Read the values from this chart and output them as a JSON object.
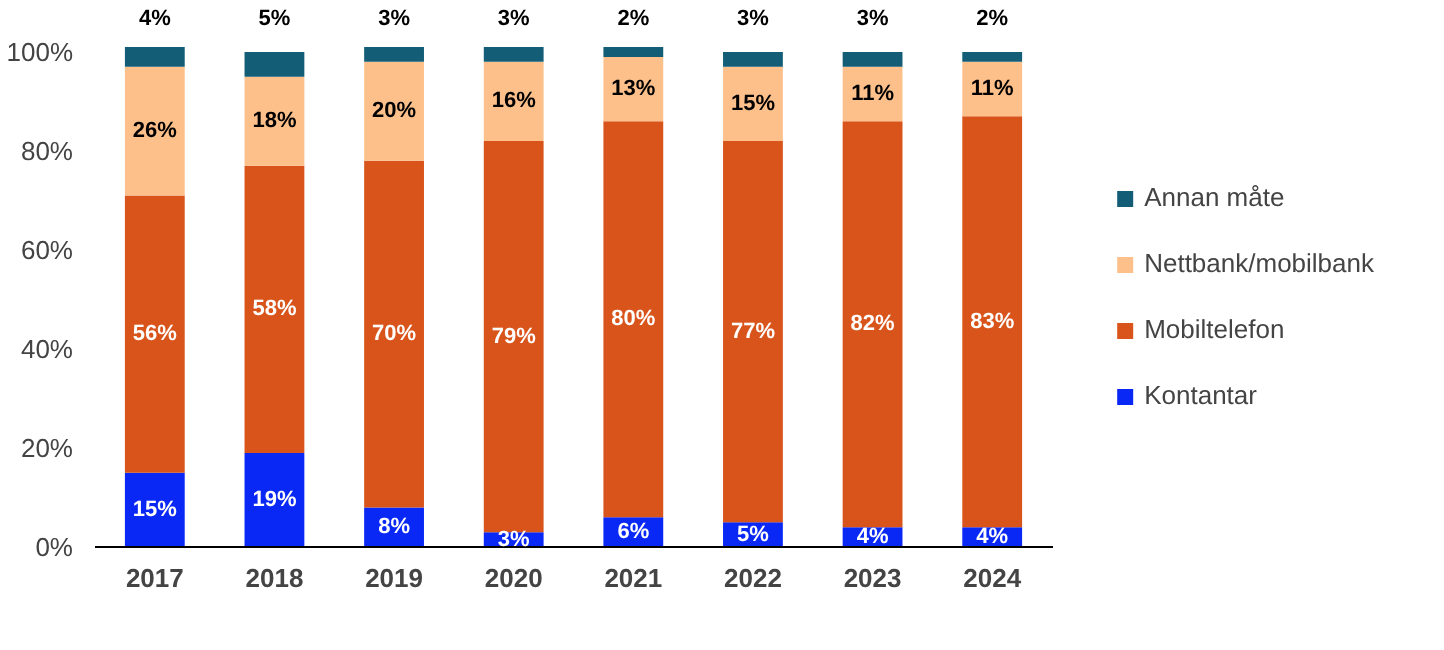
{
  "chart_data": {
    "type": "bar",
    "stacked": true,
    "categories": [
      "2017",
      "2018",
      "2019",
      "2020",
      "2021",
      "2022",
      "2023",
      "2024"
    ],
    "series": [
      {
        "name": "Kontantar",
        "color": "#0a28f5",
        "values": [
          15,
          19,
          8,
          3,
          6,
          5,
          4,
          4
        ],
        "value_labels": [
          "15%",
          "19%",
          "8%",
          "3%",
          "6%",
          "5%",
          "4%",
          "4%"
        ]
      },
      {
        "name": "Mobiltelefon",
        "color": "#d9541a",
        "values": [
          56,
          58,
          70,
          79,
          80,
          77,
          82,
          83
        ],
        "value_labels": [
          "56%",
          "58%",
          "70%",
          "79%",
          "80%",
          "77%",
          "82%",
          "83%"
        ]
      },
      {
        "name": "Nettbank/mobilbank",
        "color": "#fdc08a",
        "values": [
          26,
          18,
          20,
          16,
          13,
          15,
          11,
          11
        ],
        "value_labels": [
          "26%",
          "18%",
          "20%",
          "16%",
          "13%",
          "15%",
          "11%",
          "11%"
        ]
      },
      {
        "name": "Annan måte",
        "color": "#135d77",
        "values": [
          4,
          5,
          3,
          3,
          2,
          3,
          3,
          2
        ],
        "value_labels": [
          "4%",
          "5%",
          "3%",
          "3%",
          "2%",
          "3%",
          "3%",
          "2%"
        ]
      }
    ],
    "ylim": [
      0,
      101
    ],
    "yticks": [
      {
        "value": 0,
        "label": "0%"
      },
      {
        "value": 20,
        "label": "20%"
      },
      {
        "value": 40,
        "label": "40%"
      },
      {
        "value": 60,
        "label": "60%"
      },
      {
        "value": 80,
        "label": "80%"
      },
      {
        "value": 100,
        "label": "100%"
      }
    ],
    "legend": "right",
    "grid": false
  }
}
